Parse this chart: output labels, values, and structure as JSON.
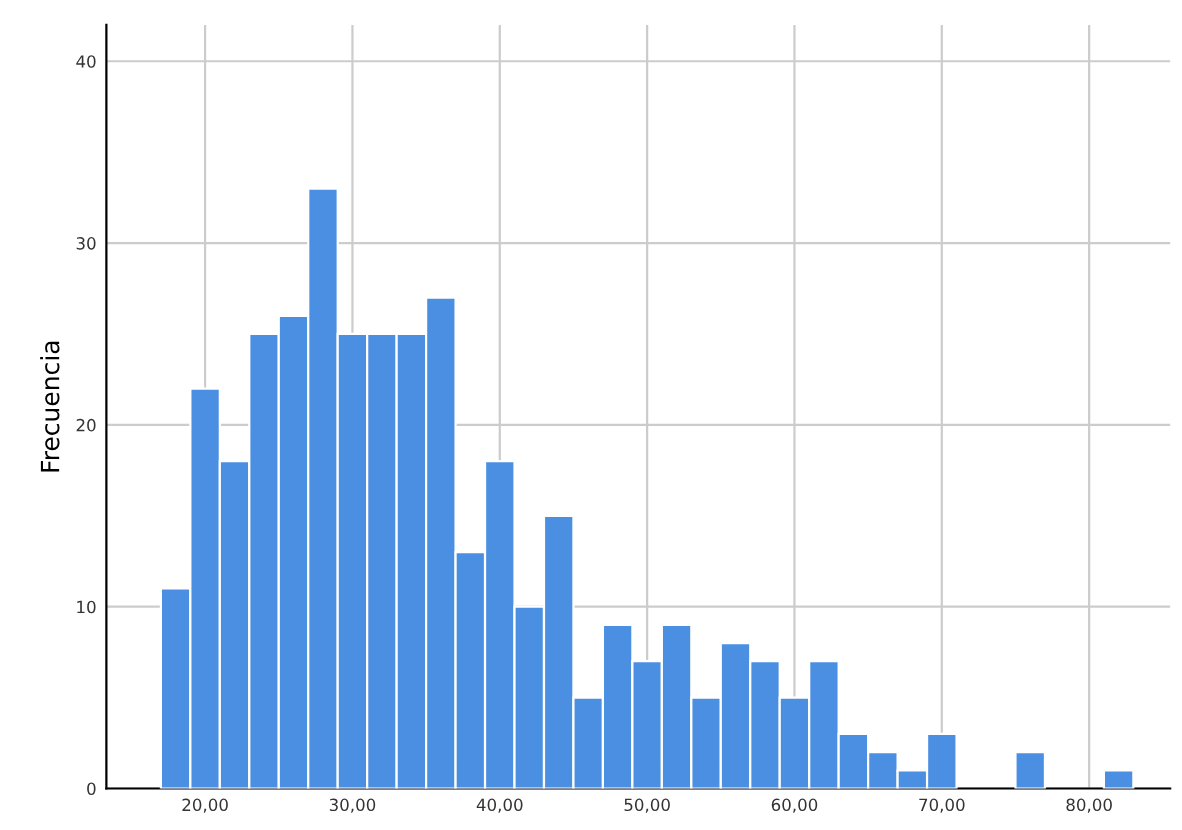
{
  "chart_data": {
    "type": "histogram",
    "ylabel": "Frecuencia",
    "bins": [
      17,
      19,
      21,
      23,
      25,
      27,
      29,
      31,
      33,
      35,
      37,
      39,
      41,
      43,
      45,
      47,
      49,
      51,
      53,
      55,
      57,
      59,
      61,
      63,
      65,
      67,
      69,
      71,
      73,
      75,
      77,
      79,
      81,
      83
    ],
    "values": [
      11,
      22,
      18,
      25,
      26,
      33,
      25,
      25,
      25,
      27,
      13,
      18,
      10,
      15,
      5,
      9,
      7,
      9,
      5,
      8,
      7,
      5,
      7,
      3,
      2,
      1,
      3,
      0,
      0,
      2,
      0,
      0,
      1
    ],
    "color": "#4a8fe2",
    "xlim": [
      13.3,
      85.5
    ],
    "xticks": [
      {
        "value": 20,
        "label": "20,00"
      },
      {
        "value": 30,
        "label": "30,00"
      },
      {
        "value": 40,
        "label": "40,00"
      },
      {
        "value": 50,
        "label": "50,00"
      },
      {
        "value": 60,
        "label": "60,00"
      },
      {
        "value": 70,
        "label": "70,00"
      },
      {
        "value": 80,
        "label": "80,00"
      }
    ],
    "ylim": [
      0,
      42
    ],
    "yticks": [
      0,
      10,
      20,
      30,
      40
    ],
    "grid": true
  }
}
